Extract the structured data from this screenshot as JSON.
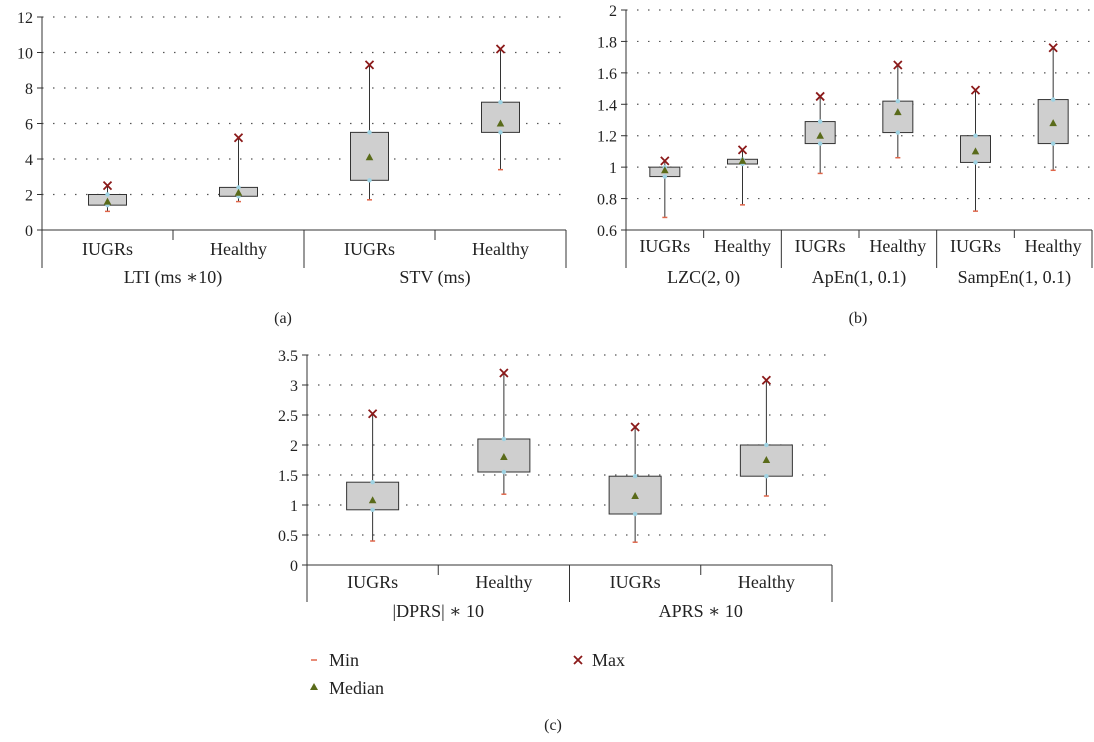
{
  "chart_data": [
    {
      "type": "box",
      "panel_label": "(a)",
      "ylim": [
        0,
        12
      ],
      "yticks": [
        0,
        2,
        4,
        6,
        8,
        10,
        12
      ],
      "grid": "dotted-horizontal",
      "groups": [
        {
          "label": "LTI (ms ∗10)",
          "boxes": [
            {
              "category": "IUGRs",
              "min": 1.05,
              "q1": 1.4,
              "median": 1.6,
              "q3": 2.0,
              "max": 2.5
            },
            {
              "category": "Healthy",
              "min": 1.6,
              "q1": 1.9,
              "median": 2.1,
              "q3": 2.4,
              "max": 5.2
            }
          ]
        },
        {
          "label": "STV (ms)",
          "boxes": [
            {
              "category": "IUGRs",
              "min": 1.7,
              "q1": 2.8,
              "median": 4.1,
              "q3": 5.5,
              "max": 9.3
            },
            {
              "category": "Healthy",
              "min": 3.4,
              "q1": 5.5,
              "median": 6.0,
              "q3": 7.2,
              "max": 10.2
            }
          ]
        }
      ]
    },
    {
      "type": "box",
      "panel_label": "(b)",
      "ylim": [
        0.6,
        2
      ],
      "yticks": [
        0.6,
        0.8,
        1,
        1.2,
        1.4,
        1.6,
        1.8,
        2
      ],
      "grid": "dotted-horizontal",
      "groups": [
        {
          "label": "LZC(2, 0)",
          "boxes": [
            {
              "category": "IUGRs",
              "min": 0.68,
              "q1": 0.94,
              "median": 0.98,
              "q3": 1.0,
              "max": 1.04
            },
            {
              "category": "Healthy",
              "min": 0.76,
              "q1": 1.02,
              "median": 1.04,
              "q3": 1.05,
              "max": 1.11
            }
          ]
        },
        {
          "label": "ApEn(1, 0.1)",
          "boxes": [
            {
              "category": "IUGRs",
              "min": 0.96,
              "q1": 1.15,
              "median": 1.2,
              "q3": 1.29,
              "max": 1.45
            },
            {
              "category": "Healthy",
              "min": 1.06,
              "q1": 1.22,
              "median": 1.35,
              "q3": 1.42,
              "max": 1.65
            }
          ]
        },
        {
          "label": "SampEn(1, 0.1)",
          "boxes": [
            {
              "category": "IUGRs",
              "min": 0.72,
              "q1": 1.03,
              "median": 1.1,
              "q3": 1.2,
              "max": 1.49
            },
            {
              "category": "Healthy",
              "min": 0.98,
              "q1": 1.15,
              "median": 1.28,
              "q3": 1.43,
              "max": 1.76
            }
          ]
        }
      ]
    },
    {
      "type": "box",
      "panel_label": "(c)",
      "ylim": [
        0,
        3.5
      ],
      "yticks": [
        0,
        0.5,
        1,
        1.5,
        2,
        2.5,
        3,
        3.5
      ],
      "grid": "dotted-horizontal",
      "groups": [
        {
          "label": "|DPRS| ∗ 10",
          "boxes": [
            {
              "category": "IUGRs",
              "min": 0.4,
              "q1": 0.92,
              "median": 1.08,
              "q3": 1.38,
              "max": 2.52
            },
            {
              "category": "Healthy",
              "min": 1.18,
              "q1": 1.55,
              "median": 1.8,
              "q3": 2.1,
              "max": 3.2
            }
          ]
        },
        {
          "label": "APRS ∗ 10",
          "boxes": [
            {
              "category": "IUGRs",
              "min": 0.38,
              "q1": 0.85,
              "median": 1.15,
              "q3": 1.48,
              "max": 2.3
            },
            {
              "category": "Healthy",
              "min": 1.15,
              "q1": 1.48,
              "median": 1.75,
              "q3": 2.0,
              "max": 3.08
            }
          ]
        }
      ]
    }
  ],
  "legend": {
    "min": "Min",
    "max": "Max",
    "median": "Median"
  },
  "colors": {
    "box_fill": "#cfcfcf",
    "box_stroke": "#333333",
    "min_marker": "#e0664a",
    "max_marker": "#8b1a1a",
    "median_marker": "#5a6b1a",
    "quartile_marker": "#9fd3e3",
    "grid": "#555555",
    "axis": "#333333"
  }
}
